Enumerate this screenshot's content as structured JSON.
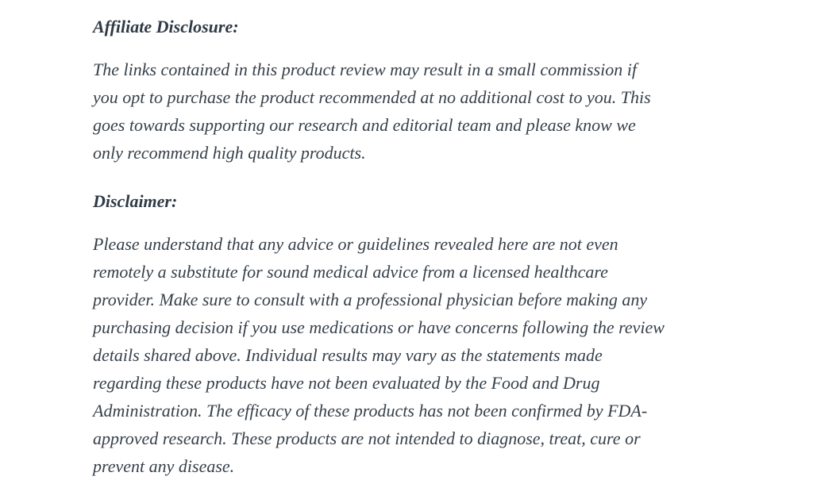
{
  "page": {
    "background": "#ffffff",
    "text_color": "#37404a",
    "heading_color": "#2e3a46"
  },
  "document": {
    "sections": [
      {
        "heading": "Affiliate Disclosure:",
        "body": "The links contained in this product review may result in a small commission if\nyou opt to purchase the product recommended at no additional cost to you. This\ngoes towards supporting our research and editorial team and please know we\nonly recommend high quality products."
      },
      {
        "heading": "Disclaimer:",
        "body": "Please understand that any advice or guidelines revealed here are not even\nremotely a substitute for sound medical advice from a licensed healthcare\nprovider. Make sure to consult with a professional physician before making any\npurchasing decision if you use medications or have concerns following the review\ndetails shared above. Individual results may vary as the statements made\nregarding these products have not been evaluated by the Food and Drug\nAdministration. The efficacy of these products has not been confirmed by FDA-\napproved research. These products are not intended to diagnose, treat, cure or\nprevent any disease."
      }
    ]
  }
}
